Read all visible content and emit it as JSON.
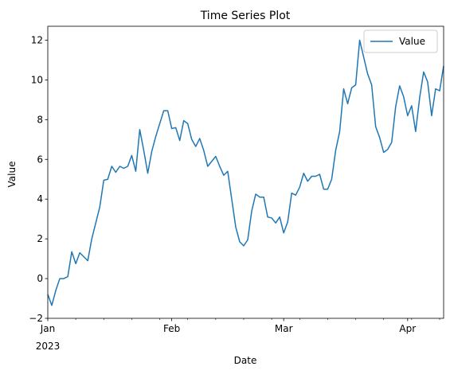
{
  "chart_data": {
    "type": "line",
    "title": "Time Series Plot",
    "xlabel": "Date",
    "ylabel": "Value",
    "x_start": "2023-01-01",
    "x_freq": "daily",
    "xlim": [
      "2023-01-01",
      "2023-04-10"
    ],
    "ylim": [
      -2,
      12.7
    ],
    "yticks": [
      -2,
      0,
      2,
      4,
      6,
      8,
      10,
      12
    ],
    "xticks": [
      {
        "date": "2023-01-01",
        "label": "Jan",
        "sublabel": "2023"
      },
      {
        "date": "2023-02-01",
        "label": "Feb",
        "sublabel": ""
      },
      {
        "date": "2023-03-01",
        "label": "Mar",
        "sublabel": ""
      },
      {
        "date": "2023-04-01",
        "label": "Apr",
        "sublabel": ""
      }
    ],
    "minor_tick_dates": [
      "2023-01-08",
      "2023-01-15",
      "2023-01-22",
      "2023-01-29",
      "2023-02-05",
      "2023-02-12",
      "2023-02-19",
      "2023-02-26",
      "2023-03-05",
      "2023-03-12",
      "2023-03-19",
      "2023-03-26",
      "2023-04-02",
      "2023-04-09"
    ],
    "grid": false,
    "legend": {
      "position": "top-right",
      "entries": [
        "Value"
      ]
    },
    "series": [
      {
        "name": "Value",
        "color": "#1f77b4",
        "values": [
          -0.8,
          -1.35,
          -0.6,
          0.0,
          0.0,
          0.1,
          1.35,
          0.75,
          1.3,
          1.1,
          0.9,
          2.0,
          2.8,
          3.6,
          4.95,
          5.0,
          5.65,
          5.35,
          5.65,
          5.55,
          5.65,
          6.2,
          5.4,
          7.5,
          6.45,
          5.3,
          6.4,
          7.15,
          7.8,
          8.45,
          8.45,
          7.55,
          7.6,
          6.95,
          7.95,
          7.8,
          7.0,
          6.65,
          7.05,
          6.45,
          5.65,
          5.9,
          6.15,
          5.65,
          5.2,
          5.4,
          4.0,
          2.6,
          1.85,
          1.65,
          1.95,
          3.4,
          4.25,
          4.1,
          4.1,
          3.1,
          3.05,
          2.8,
          3.1,
          2.3,
          2.85,
          4.3,
          4.2,
          4.6,
          5.3,
          4.9,
          5.15,
          5.15,
          5.25,
          4.5,
          4.5,
          5.0,
          6.45,
          7.4,
          9.55,
          8.8,
          9.6,
          9.75,
          12.0,
          11.15,
          10.3,
          9.75,
          7.65,
          7.1,
          6.35,
          6.5,
          6.85,
          8.65,
          9.7,
          9.15,
          8.2,
          8.7,
          7.4,
          9.1,
          10.4,
          9.9,
          8.2,
          9.55,
          9.45,
          10.7
        ]
      }
    ]
  }
}
